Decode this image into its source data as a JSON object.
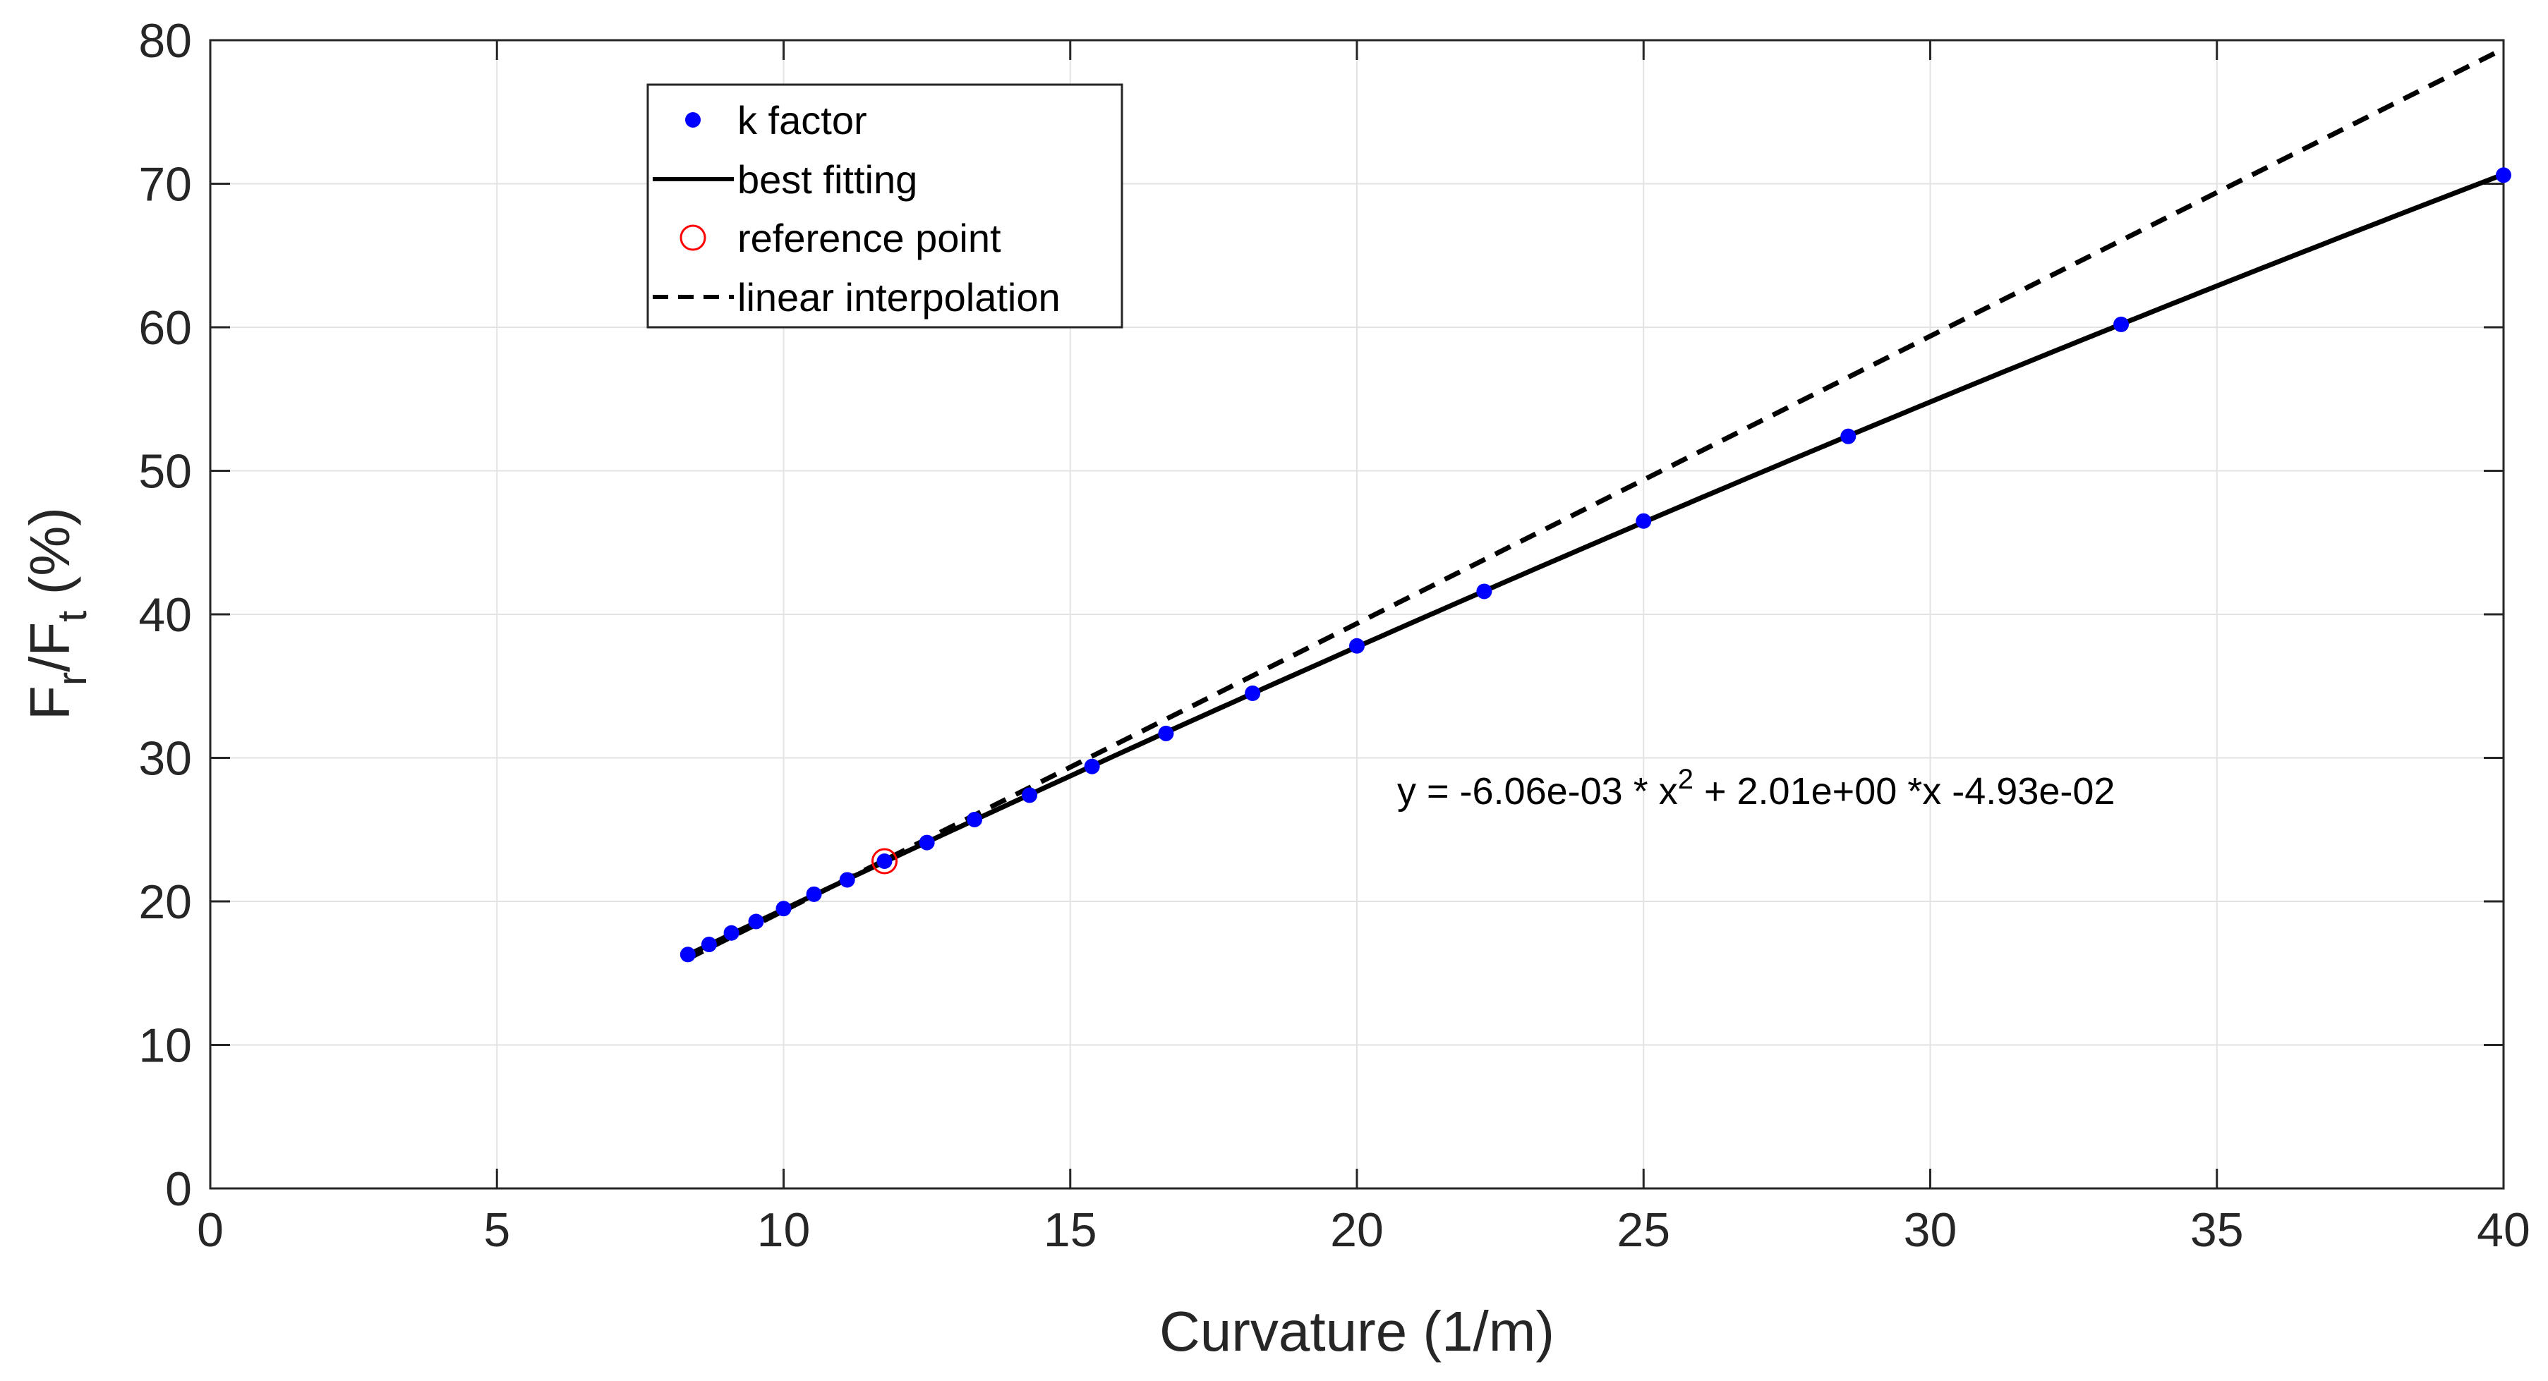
{
  "chart_data": {
    "type": "scatter",
    "title": "",
    "xlabel": "Curvature (1/m)",
    "ylabel": {
      "base": "F",
      "sub1": "r",
      "mid": "/F",
      "sub2": "t",
      "suffix": " (%)"
    },
    "xlim": [
      0,
      40
    ],
    "ylim": [
      0,
      80
    ],
    "xticks": [
      0,
      5,
      10,
      15,
      20,
      25,
      30,
      35,
      40
    ],
    "yticks": [
      0,
      10,
      20,
      30,
      40,
      50,
      60,
      70,
      80
    ],
    "grid": true,
    "legend_position": "top-left",
    "series": [
      {
        "name": "k factor",
        "kind": "points",
        "color": "#0000ff",
        "x": [
          8.33,
          8.7,
          9.09,
          9.52,
          10.0,
          10.53,
          11.11,
          11.76,
          12.5,
          13.33,
          14.29,
          15.38,
          16.67,
          18.18,
          20.0,
          22.22,
          25.0,
          28.57,
          33.33,
          40.0
        ],
        "y": [
          16.3,
          17.0,
          17.8,
          18.6,
          19.5,
          20.5,
          21.5,
          22.8,
          24.1,
          25.7,
          27.4,
          29.4,
          31.7,
          34.5,
          37.8,
          41.6,
          46.5,
          52.4,
          60.2,
          70.6
        ]
      },
      {
        "name": "best fitting",
        "kind": "fit",
        "color": "#000000",
        "coefficients": {
          "a": -0.00606,
          "b": 2.01,
          "c": -0.0493
        },
        "x_range": [
          8.33,
          40.0
        ]
      },
      {
        "name": "reference point",
        "kind": "marker",
        "color": "#ff0000",
        "x": [
          11.76
        ],
        "y": [
          22.8
        ]
      },
      {
        "name": "linear interpolation",
        "kind": "dashed-line",
        "color": "#000000",
        "x": [
          8.33,
          40.0
        ],
        "y": [
          16.0,
          79.4
        ]
      }
    ],
    "annotation": {
      "prefix": "y = -6.06e-03 * x",
      "exponent": "2",
      "suffix": " + 2.01e+00 *x -4.93e-02"
    }
  }
}
